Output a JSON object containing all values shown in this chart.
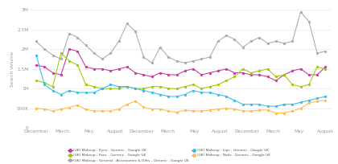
{
  "ylabel": "Search Volume",
  "x_labels": [
    "December",
    "March",
    "May",
    "August",
    "December",
    "March",
    "May",
    "August",
    "December",
    "March",
    "May",
    "August"
  ],
  "ylim": [
    0,
    3000000
  ],
  "yticks": [
    0,
    500000,
    1000000,
    1500000,
    2000000,
    2500000,
    3000000
  ],
  "ytick_labels": [
    "0",
    "500K",
    "1M",
    "1.5M",
    "2M",
    "2.5M",
    "3M"
  ],
  "series": [
    {
      "label": "(UK) Makeup : Eyes - Generic - Google UK",
      "color": "#cc3399",
      "marker": "o",
      "values": [
        1600000,
        1550000,
        1400000,
        1350000,
        2000000,
        1950000,
        1550000,
        1500000,
        1500000,
        1450000,
        1500000,
        1550000,
        1400000,
        1350000,
        1300000,
        1400000,
        1350000,
        1350000,
        1450000,
        1500000,
        1350000,
        1400000,
        1450000,
        1500000,
        1400000,
        1400000,
        1350000,
        1350000,
        1300000,
        1200000,
        1350000,
        1450000,
        1500000,
        1350000,
        1350000,
        1550000
      ]
    },
    {
      "label": "(UK) Makeup : General - Accessories & Gifts - Generic - Google UK",
      "color": "#aaaaaa",
      "marker": "o",
      "values": [
        2200000,
        2000000,
        1850000,
        1750000,
        2400000,
        2300000,
        2100000,
        1900000,
        1750000,
        1900000,
        2200000,
        2650000,
        2450000,
        1800000,
        1650000,
        2050000,
        1800000,
        1700000,
        1650000,
        1700000,
        1750000,
        1800000,
        2200000,
        2350000,
        2250000,
        2050000,
        2200000,
        2300000,
        2150000,
        2200000,
        2150000,
        2200000,
        2950000,
        2700000,
        1900000,
        1950000
      ]
    },
    {
      "label": "(UK) Makeup : Face - Generic - Google UK",
      "color": "#99cc00",
      "marker": "o",
      "values": [
        1200000,
        1150000,
        1050000,
        1900000,
        1700000,
        1600000,
        1100000,
        1050000,
        1000000,
        1000000,
        1000000,
        1050000,
        1000000,
        1000000,
        1050000,
        1050000,
        1000000,
        1000000,
        1050000,
        1100000,
        1000000,
        1050000,
        1100000,
        1200000,
        1300000,
        1500000,
        1400000,
        1450000,
        1500000,
        1300000,
        1350000,
        1100000,
        1050000,
        1100000,
        1550000,
        1500000
      ]
    },
    {
      "label": "(UK) Makeup : Lips - Generic - Google UK",
      "color": "#33bbee",
      "marker": "o",
      "values": [
        1850000,
        1100000,
        950000,
        850000,
        950000,
        900000,
        900000,
        900000,
        1000000,
        1100000,
        1050000,
        1050000,
        1000000,
        950000,
        900000,
        850000,
        800000,
        800000,
        850000,
        950000,
        900000,
        900000,
        850000,
        800000,
        700000,
        600000,
        600000,
        600000,
        550000,
        550000,
        600000,
        600000,
        650000,
        700000,
        750000,
        800000
      ]
    },
    {
      "label": "(UK) Makeup : Nails - Generic - Google UK",
      "color": "#ffbb44",
      "marker": "o",
      "values": [
        500000,
        480000,
        430000,
        480000,
        520000,
        580000,
        470000,
        430000,
        430000,
        430000,
        480000,
        600000,
        680000,
        530000,
        480000,
        480000,
        430000,
        400000,
        450000,
        430000,
        430000,
        450000,
        480000,
        500000,
        480000,
        430000,
        430000,
        450000,
        450000,
        380000,
        380000,
        430000,
        500000,
        630000,
        680000,
        700000
      ]
    }
  ],
  "legend": [
    {
      "label": "(UK) Makeup : Eyes - Generic - Google UK",
      "color": "#cc3399"
    },
    {
      "label": "(UK) Makeup : Face - Generic - Google UK",
      "color": "#99cc00"
    },
    {
      "label": "(UK) Makeup : General - Accessories & Gifts - Generic - Google UK",
      "color": "#aaaaaa"
    },
    {
      "label": "(UK) Makeup : Lips - Generic - Google UK",
      "color": "#33bbee"
    },
    {
      "label": "(UK) Makeup : Nails - Generic - Google UK",
      "color": "#ffbb44"
    }
  ]
}
